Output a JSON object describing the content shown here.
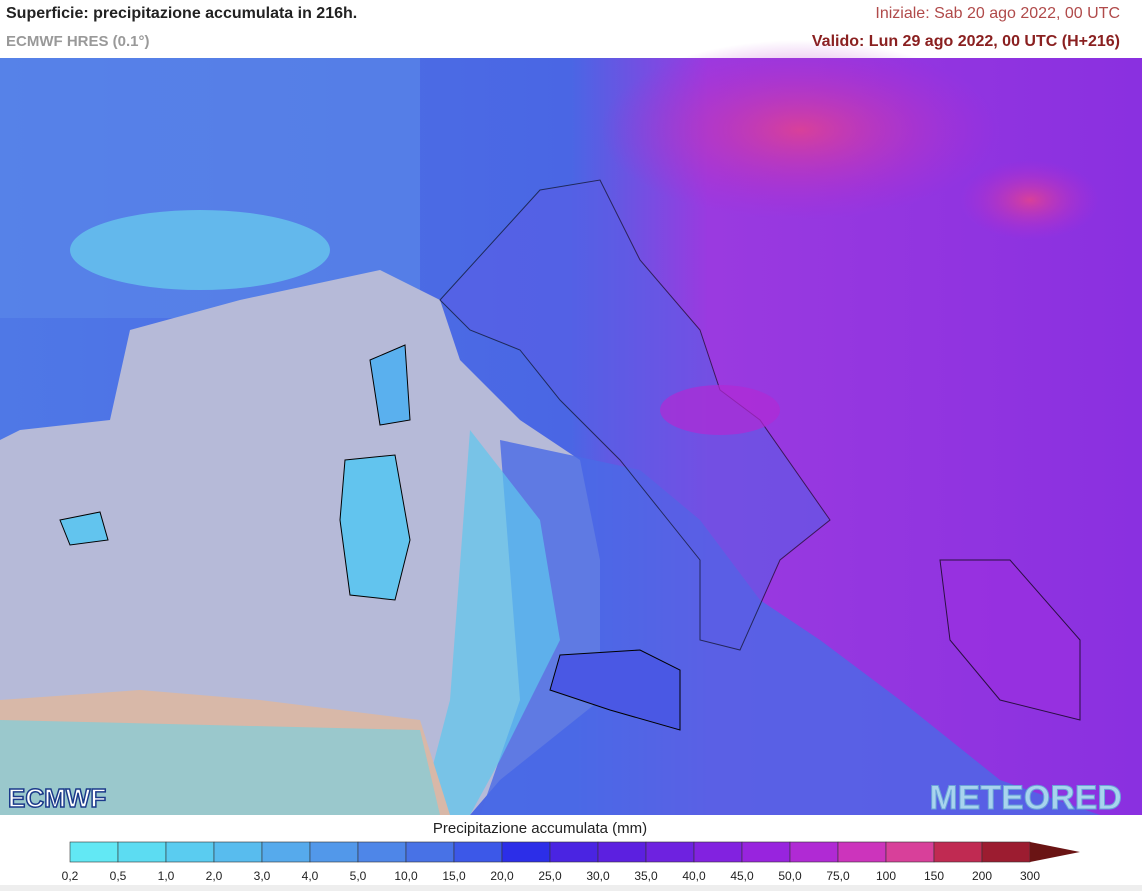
{
  "header": {
    "title": "Superficie: precipitazione accumulata in 216h.",
    "model": "ECMWF HRES (0.1°)",
    "init": "Iniziale: Sab 20 ago 2022, 00 UTC",
    "valid": "Valido: Lun 29 ago 2022, 00 UTC (H+216)"
  },
  "logos": {
    "left": "ECMWF",
    "right": "METEORED"
  },
  "colorbar": {
    "title": "Precipitazione accumulata (mm)",
    "labels": [
      "0,2",
      "0,5",
      "1,0",
      "2,0",
      "3,0",
      "4,0",
      "5,0",
      "10,0",
      "15,0",
      "20,0",
      "25,0",
      "30,0",
      "35,0",
      "40,0",
      "45,0",
      "50,0",
      "75,0",
      "100",
      "150",
      "200",
      "300"
    ],
    "colors": [
      "#62e8f4",
      "#5cdcf2",
      "#5accf0",
      "#58bcee",
      "#56aaec",
      "#5298ea",
      "#4e86e8",
      "#4872e6",
      "#3c58e8",
      "#2c2ee8",
      "#4a24e2",
      "#5c20e0",
      "#6e22e0",
      "#8222e0",
      "#9824de",
      "#b02ad4",
      "#cc34bc",
      "#d8409a",
      "#c02a52",
      "#9c1c30",
      "#6a1414"
    ]
  }
}
